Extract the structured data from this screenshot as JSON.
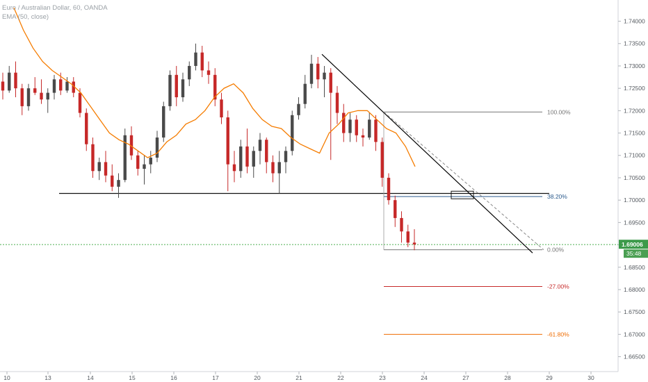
{
  "chart_data": {
    "type": "candlestick",
    "title": "Euro / Australian Dollar, 60, OANDA",
    "indicator": "EMA (50, close)",
    "colors": {
      "up": "#4a4a4a",
      "down": "#c62828",
      "ema": "#f57c00",
      "trendline": "#000000",
      "projection_dash": "#888888",
      "price_line": "#4caf50",
      "price_badge_bg": "#3c9a4a",
      "timer_badge_bg": "#4a9f52"
    },
    "y_ticks": [
      "1.74000",
      "1.73500",
      "1.73000",
      "1.72500",
      "1.72000",
      "1.71500",
      "1.71000",
      "1.70500",
      "1.70000",
      "1.69500",
      "1.69000",
      "1.68500",
      "1.68000",
      "1.67500",
      "1.67000",
      "1.66500"
    ],
    "x_ticks": [
      "10",
      "13",
      "14",
      "15",
      "16",
      "17",
      "20",
      "21",
      "22",
      "23",
      "24",
      "27",
      "28",
      "29",
      "30"
    ],
    "ylim": [
      1.664,
      1.7435
    ],
    "current_price": "1.69006",
    "countdown": "35:48",
    "support_level": 1.7015,
    "fib_levels": [
      {
        "label": "100.00%",
        "value": 1.7197,
        "color": "#757575"
      },
      {
        "label": "38.20%",
        "value": 1.7008,
        "color": "#2a5a8c"
      },
      {
        "label": "0.00%",
        "value": 1.6889,
        "color": "#757575"
      },
      {
        "label": "-27.00%",
        "value": 1.6807,
        "color": "#c62828"
      },
      {
        "label": "-61.80%",
        "value": 1.67,
        "color": "#ef6c00"
      }
    ],
    "trendline": {
      "start": [
        "21 08:00",
        1.7326
      ],
      "end": [
        "28 16:00",
        1.6882
      ]
    },
    "box_zone": {
      "x_from": "26 12:00",
      "x_to": "27 06:00",
      "y_from": 1.7003,
      "y_to": 1.702
    },
    "ema_50": [
      [
        1.743,
        1.738,
        1.734,
        1.731,
        1.729,
        1.7275,
        1.726,
        1.724,
        1.721,
        1.718,
        1.715,
        1.7135,
        1.7125,
        1.711,
        1.7095,
        1.7105,
        1.713,
        1.7145,
        1.717,
        1.718,
        1.72,
        1.723,
        1.725,
        1.726,
        1.724,
        1.7205,
        1.718,
        1.7165,
        1.716,
        1.714,
        1.7125,
        1.7115,
        1.7105,
        1.715,
        1.717,
        1.7195,
        1.72,
        1.72,
        1.718,
        1.716,
        1.715,
        1.712,
        1.7075
      ]
    ],
    "candles_ohlc": [
      [
        1.7265,
        1.7285,
        1.7225,
        1.7245
      ],
      [
        1.7245,
        1.73,
        1.724,
        1.7285
      ],
      [
        1.7285,
        1.731,
        1.723,
        1.725
      ],
      [
        1.725,
        1.726,
        1.719,
        1.721
      ],
      [
        1.721,
        1.726,
        1.72,
        1.725
      ],
      [
        1.725,
        1.7275,
        1.7235,
        1.724
      ],
      [
        1.724,
        1.727,
        1.7215,
        1.7225
      ],
      [
        1.7225,
        1.725,
        1.7195,
        1.724
      ],
      [
        1.724,
        1.728,
        1.7225,
        1.727
      ],
      [
        1.727,
        1.7285,
        1.7235,
        1.7245
      ],
      [
        1.7245,
        1.7275,
        1.724,
        1.7265
      ],
      [
        1.7265,
        1.7275,
        1.723,
        1.724
      ],
      [
        1.724,
        1.725,
        1.7185,
        1.7195
      ],
      [
        1.7195,
        1.7205,
        1.711,
        1.7125
      ],
      [
        1.7125,
        1.714,
        1.705,
        1.7065
      ],
      [
        1.7065,
        1.7095,
        1.7045,
        1.7085
      ],
      [
        1.7085,
        1.711,
        1.704,
        1.7055
      ],
      [
        1.7055,
        1.708,
        1.702,
        1.703
      ],
      [
        1.703,
        1.706,
        1.7005,
        1.7045
      ],
      [
        1.7045,
        1.716,
        1.704,
        1.7145
      ],
      [
        1.7145,
        1.7165,
        1.709,
        1.71
      ],
      [
        1.71,
        1.711,
        1.7055,
        1.707
      ],
      [
        1.707,
        1.71,
        1.7035,
        1.708
      ],
      [
        1.708,
        1.711,
        1.706,
        1.7095
      ],
      [
        1.7095,
        1.7155,
        1.7085,
        1.714
      ],
      [
        1.714,
        1.722,
        1.713,
        1.721
      ],
      [
        1.721,
        1.729,
        1.72,
        1.728
      ],
      [
        1.728,
        1.73,
        1.721,
        1.723
      ],
      [
        1.723,
        1.7285,
        1.722,
        1.727
      ],
      [
        1.727,
        1.731,
        1.7255,
        1.73
      ],
      [
        1.73,
        1.735,
        1.729,
        1.733
      ],
      [
        1.733,
        1.7345,
        1.7275,
        1.729
      ],
      [
        1.729,
        1.731,
        1.726,
        1.728
      ],
      [
        1.728,
        1.7295,
        1.721,
        1.7225
      ],
      [
        1.7225,
        1.724,
        1.717,
        1.7185
      ],
      [
        1.7185,
        1.72,
        1.702,
        1.708
      ],
      [
        1.708,
        1.711,
        1.704,
        1.7065
      ],
      [
        1.7065,
        1.7135,
        1.705,
        1.712
      ],
      [
        1.712,
        1.716,
        1.706,
        1.7075
      ],
      [
        1.7075,
        1.712,
        1.705,
        1.711
      ],
      [
        1.711,
        1.715,
        1.708,
        1.7135
      ],
      [
        1.7135,
        1.714,
        1.706,
        1.7085
      ],
      [
        1.7085,
        1.71,
        1.704,
        1.706
      ],
      [
        1.706,
        1.711,
        1.7015,
        1.7085
      ],
      [
        1.7085,
        1.712,
        1.706,
        1.711
      ],
      [
        1.711,
        1.72,
        1.71,
        1.719
      ],
      [
        1.719,
        1.723,
        1.718,
        1.7215
      ],
      [
        1.7215,
        1.728,
        1.7205,
        1.726
      ],
      [
        1.726,
        1.7325,
        1.725,
        1.7305
      ],
      [
        1.7305,
        1.732,
        1.725,
        1.727
      ],
      [
        1.727,
        1.73,
        1.723,
        1.7285
      ],
      [
        1.7285,
        1.7295,
        1.709,
        1.724
      ],
      [
        1.724,
        1.7255,
        1.717,
        1.7195
      ],
      [
        1.7195,
        1.7215,
        1.713,
        1.715
      ],
      [
        1.715,
        1.7195,
        1.713,
        1.718
      ],
      [
        1.718,
        1.719,
        1.713,
        1.7145
      ],
      [
        1.7145,
        1.716,
        1.712,
        1.714
      ],
      [
        1.714,
        1.7195,
        1.7135,
        1.718
      ],
      [
        1.718,
        1.719,
        1.711,
        1.713
      ],
      [
        1.713,
        1.714,
        1.703,
        1.705
      ],
      [
        1.705,
        1.706,
        1.699,
        1.7
      ],
      [
        1.7,
        1.701,
        1.694,
        1.696
      ],
      [
        1.696,
        1.6975,
        1.6905,
        1.693
      ],
      [
        1.693,
        1.6945,
        1.6895,
        1.6905
      ],
      [
        1.6905,
        1.6935,
        1.6888,
        1.6901
      ]
    ]
  }
}
